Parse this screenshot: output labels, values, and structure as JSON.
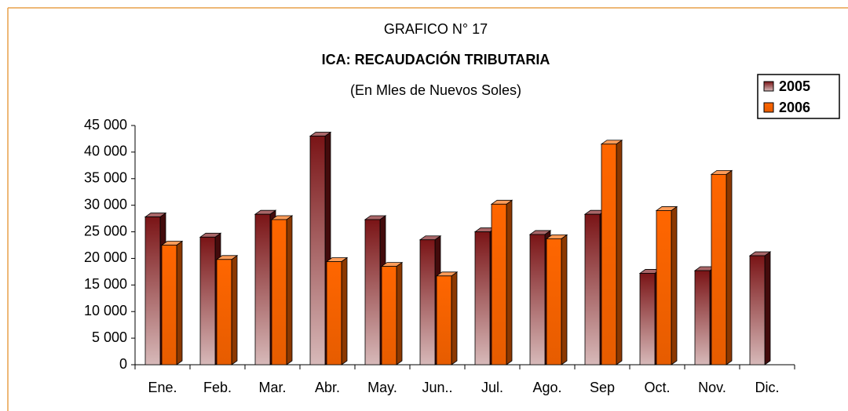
{
  "chart_data": {
    "type": "bar",
    "title": "GRAFICO N° 17",
    "subtitle": "ICA: RECAUDACIÓN TRIBUTARIA",
    "note": "(En Mles de Nuevos Soles)",
    "categories": [
      "Ene.",
      "Feb.",
      "Mar.",
      "Abr.",
      "May.",
      "Jun..",
      "Jul.",
      "Ago.",
      "Sep",
      "Oct.",
      "Nov.",
      "Dic."
    ],
    "series": [
      {
        "name": "2005",
        "color": "#7a1416",
        "values": [
          27800,
          24000,
          28300,
          43000,
          27300,
          23500,
          25000,
          24500,
          28300,
          17200,
          17700,
          20500
        ]
      },
      {
        "name": "2006",
        "color": "#ff6600",
        "values": [
          22500,
          19800,
          27300,
          19400,
          18500,
          16700,
          30200,
          23700,
          41500,
          29000,
          35800,
          null
        ]
      }
    ],
    "ylim": [
      0,
      45000
    ],
    "yticks": [
      0,
      {
        "value": 5000,
        "label": "5 000"
      },
      {
        "value": 10000,
        "label": "10 000"
      },
      {
        "value": 15000,
        "label": "15 000"
      },
      {
        "value": 20000,
        "label": "20 000"
      },
      {
        "value": 25000,
        "label": "25 000"
      },
      {
        "value": 30000,
        "label": "30 000"
      },
      {
        "value": 35000,
        "label": "35 000"
      },
      {
        "value": 40000,
        "label": "40 000"
      },
      {
        "value": 45000,
        "label": "45 000"
      }
    ],
    "legend": "top-right"
  }
}
